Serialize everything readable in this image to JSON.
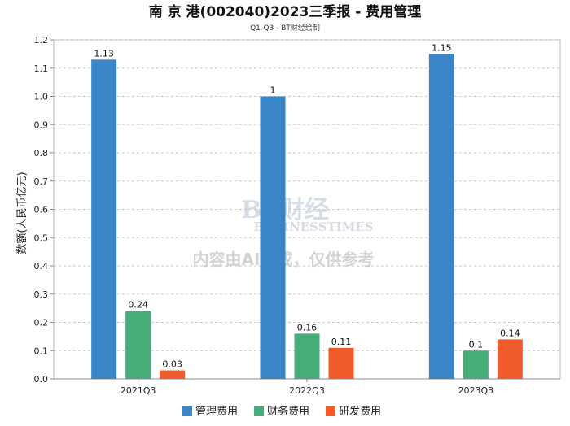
{
  "title": "南 京 港(002040)2023三季报 - 费用管理",
  "subtitle": "Q1-Q3 - BT财经绘制",
  "watermark": {
    "brand": "BT财经",
    "sub": "BUSINESSTIMES",
    "note": "内容由AI生成，仅供参考"
  },
  "colors": {
    "series": [
      "#3a85c6",
      "#46ac78",
      "#f15a2b"
    ]
  },
  "chart_data": {
    "type": "bar",
    "title": "南 京 港(002040)2023三季报 - 费用管理",
    "subtitle": "Q1-Q3 - BT财经绘制",
    "xlabel": "",
    "ylabel": "数额(人民币亿元)",
    "categories": [
      "2021Q3",
      "2022Q3",
      "2023Q3"
    ],
    "series": [
      {
        "name": "管理费用",
        "values": [
          1.13,
          1.0,
          1.15
        ],
        "labels": [
          "1.13",
          "1",
          "1.15"
        ]
      },
      {
        "name": "财务费用",
        "values": [
          0.24,
          0.16,
          0.1
        ],
        "labels": [
          "0.24",
          "0.16",
          "0.1"
        ]
      },
      {
        "name": "研发费用",
        "values": [
          0.03,
          0.11,
          0.14
        ],
        "labels": [
          "0.03",
          "0.11",
          "0.14"
        ]
      }
    ],
    "ylim": [
      0,
      1.2
    ],
    "yticks": [
      "0.0",
      "0.1",
      "0.2",
      "0.3",
      "0.4",
      "0.5",
      "0.6",
      "0.7",
      "0.8",
      "0.9",
      "1.0",
      "1.1",
      "1.2"
    ],
    "grid": true,
    "legend": "bottom"
  }
}
